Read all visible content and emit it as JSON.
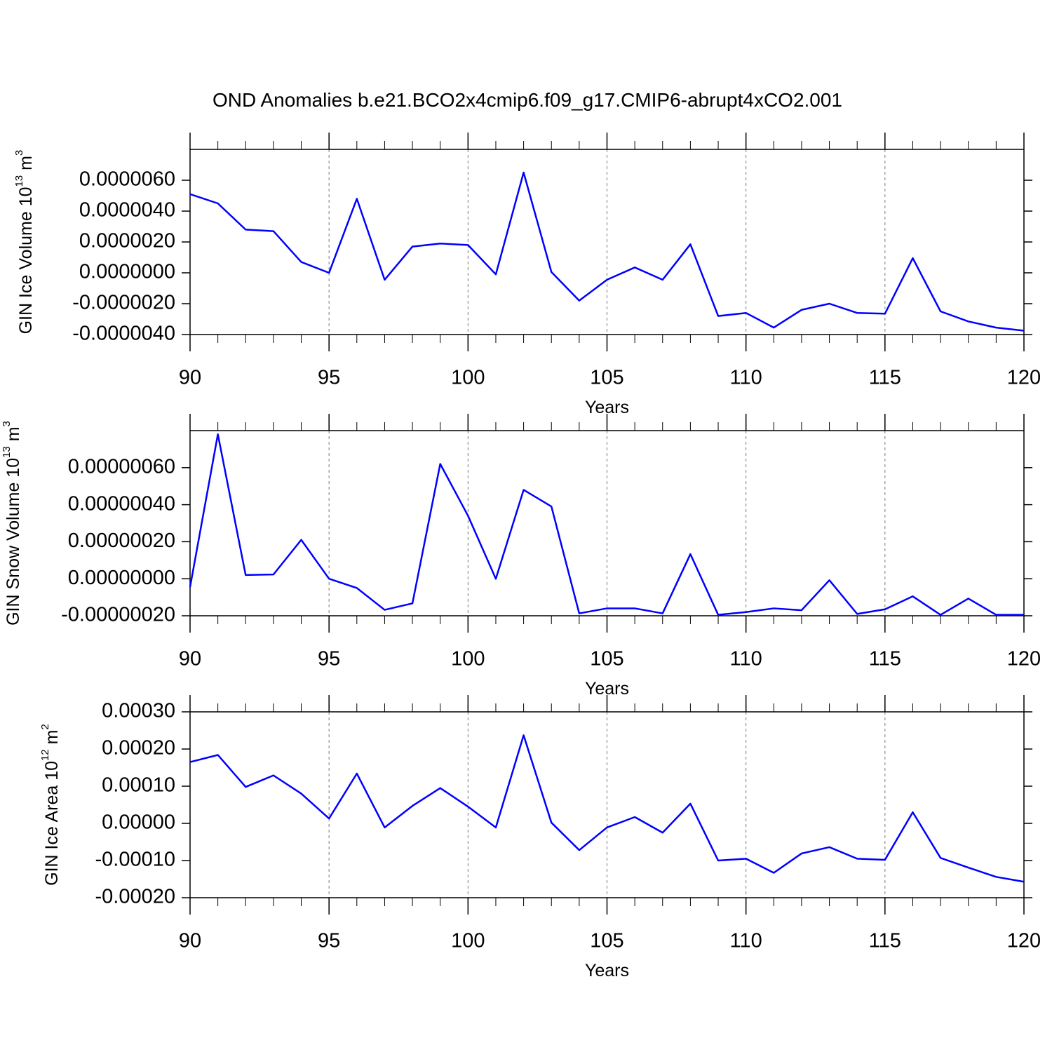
{
  "chart_data": [
    {
      "type": "line",
      "title": "OND Anomalies b.e21.BCO2x4cmip6.f09_g17.CMIP6-abrupt4xCO2.001",
      "ylabel": {
        "text": "GIN Ice Volume 10",
        "exp": "13",
        "unit": " m",
        "unit_exp": "3"
      },
      "xlabel": "Years",
      "x": [
        90,
        91,
        92,
        93,
        94,
        95,
        96,
        97,
        98,
        99,
        100,
        101,
        102,
        103,
        104,
        105,
        106,
        107,
        108,
        109,
        110,
        111,
        112,
        113,
        114,
        115,
        116,
        117,
        118,
        119,
        120
      ],
      "series": [
        {
          "color": "#0000ff",
          "values": [
            5.1e-06,
            4.5e-06,
            2.8e-06,
            2.7e-06,
            7e-07,
            0.0,
            4.8e-06,
            -4.5e-07,
            1.7e-06,
            1.9e-06,
            1.8e-06,
            -1e-07,
            6.5e-06,
            5e-08,
            -1.8e-06,
            -4.5e-07,
            3.5e-07,
            -4.5e-07,
            1.85e-06,
            -2.8e-06,
            -2.6e-06,
            -3.55e-06,
            -2.4e-06,
            -2e-06,
            -2.6e-06,
            -2.65e-06,
            9.5e-07,
            -2.5e-06,
            -3.15e-06,
            -3.55e-06,
            -3.75e-06
          ]
        }
      ],
      "xlim": [
        90,
        120
      ],
      "xticks": [
        90,
        95,
        100,
        105,
        110,
        115,
        120
      ],
      "ylim": [
        -4e-06,
        8e-06
      ],
      "yticks": [
        {
          "value": -4e-06,
          "label": "-0.0000040"
        },
        {
          "value": -2e-06,
          "label": "-0.0000020"
        },
        {
          "value": 0,
          "label": "0.0000000"
        },
        {
          "value": 2e-06,
          "label": "0.0000020"
        },
        {
          "value": 4e-06,
          "label": "0.0000040"
        },
        {
          "value": 6e-06,
          "label": "0.0000060"
        }
      ],
      "grid": "x-dashed"
    },
    {
      "type": "line",
      "ylabel": {
        "text": "GIN Snow Volume 10",
        "exp": "13",
        "unit": " m",
        "unit_exp": "3"
      },
      "xlabel": "Years",
      "x": [
        90,
        91,
        92,
        93,
        94,
        95,
        96,
        97,
        98,
        99,
        100,
        101,
        102,
        103,
        104,
        105,
        106,
        107,
        108,
        109,
        110,
        111,
        112,
        113,
        114,
        115,
        116,
        117,
        118,
        119,
        120
      ],
      "series": [
        {
          "color": "#0000ff",
          "values": [
            -4.5e-08,
            7.8e-07,
            2e-08,
            2.3e-08,
            2.1e-07,
            0.0,
            -5e-08,
            -1.68e-07,
            -1.33e-07,
            6.2e-07,
            3.4e-07,
            0.0,
            4.8e-07,
            3.9e-07,
            -1.87e-07,
            -1.6e-07,
            -1.6e-07,
            -1.87e-07,
            1.33e-07,
            -1.95e-07,
            -1.8e-07,
            -1.6e-07,
            -1.7e-07,
            -8e-09,
            -1.9e-07,
            -1.65e-07,
            -9.5e-08,
            -1.95e-07,
            -1.07e-07,
            -1.95e-07,
            -1.95e-07
          ]
        }
      ],
      "xlim": [
        90,
        120
      ],
      "xticks": [
        90,
        95,
        100,
        105,
        110,
        115,
        120
      ],
      "ylim": [
        -2e-07,
        8e-07
      ],
      "yticks": [
        {
          "value": -2e-07,
          "label": "-0.00000020"
        },
        {
          "value": 0,
          "label": "0.00000000"
        },
        {
          "value": 2e-07,
          "label": "0.00000020"
        },
        {
          "value": 4e-07,
          "label": "0.00000040"
        },
        {
          "value": 6e-07,
          "label": "0.00000060"
        }
      ],
      "grid": "x-dashed"
    },
    {
      "type": "line",
      "ylabel": {
        "text": "GIN Ice Area 10",
        "exp": "12",
        "unit": " m",
        "unit_exp": "2"
      },
      "xlabel": "Years",
      "x": [
        90,
        91,
        92,
        93,
        94,
        95,
        96,
        97,
        98,
        99,
        100,
        101,
        102,
        103,
        104,
        105,
        106,
        107,
        108,
        109,
        110,
        111,
        112,
        113,
        114,
        115,
        116,
        117,
        118,
        119,
        120
      ],
      "series": [
        {
          "color": "#0000ff",
          "values": [
            0.000165,
            0.000184,
            9.8e-05,
            0.000129,
            8e-05,
            1.3e-05,
            0.000134,
            -1.1e-05,
            4.7e-05,
            9.5e-05,
            4.5e-05,
            -1.1e-05,
            0.000237,
            2e-06,
            -7.2e-05,
            -1.1e-05,
            1.7e-05,
            -2.5e-05,
            5.3e-05,
            -0.0001,
            -9.5e-05,
            -0.000133,
            -8.1e-05,
            -6.4e-05,
            -9.5e-05,
            -9.8e-05,
            3e-05,
            -9.3e-05,
            -0.000119,
            -0.000144,
            -0.000157
          ]
        }
      ],
      "xlim": [
        90,
        120
      ],
      "xticks": [
        90,
        95,
        100,
        105,
        110,
        115,
        120
      ],
      "ylim": [
        -0.0002,
        0.0003
      ],
      "yticks": [
        {
          "value": -0.0002,
          "label": "-0.00020"
        },
        {
          "value": -0.0001,
          "label": "-0.00010"
        },
        {
          "value": 0,
          "label": "0.00000"
        },
        {
          "value": 0.0001,
          "label": "0.00010"
        },
        {
          "value": 0.0002,
          "label": "0.00020"
        },
        {
          "value": 0.0003,
          "label": "0.00030"
        }
      ],
      "grid": "x-dashed"
    }
  ]
}
